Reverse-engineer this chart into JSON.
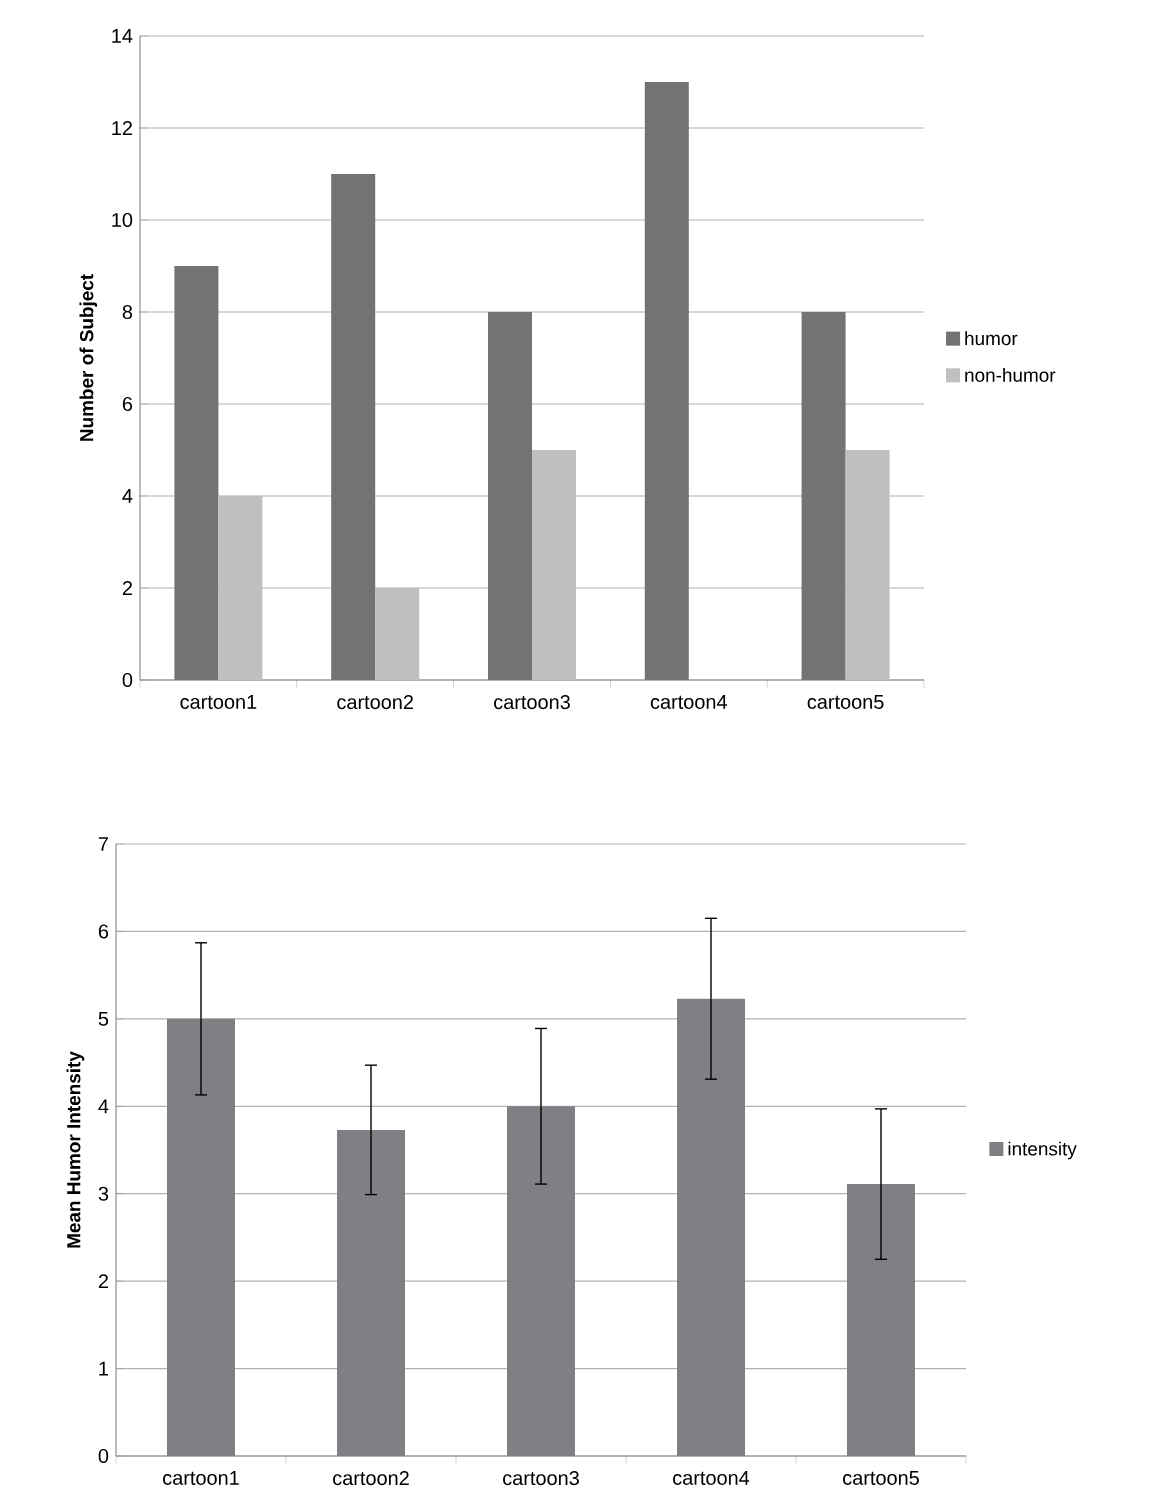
{
  "chart_data": [
    {
      "type": "bar",
      "ylabel": "Number of Subject",
      "categories": [
        "cartoon1",
        "cartoon2",
        "cartoon3",
        "cartoon4",
        "cartoon5"
      ],
      "series": [
        {
          "name": "humor",
          "color": "#737373",
          "values": [
            9,
            11,
            8,
            13,
            8
          ]
        },
        {
          "name": "non-humor",
          "color": "#bfbfbf",
          "values": [
            4,
            2,
            5,
            0,
            5
          ]
        }
      ],
      "ylim": [
        0,
        14
      ],
      "yticks": [
        0,
        2,
        4,
        6,
        8,
        10,
        12,
        14
      ],
      "grid": "y",
      "legend": "right"
    },
    {
      "type": "bar",
      "ylabel": "Mean Humor Intensity",
      "categories": [
        "cartoon1",
        "cartoon2",
        "cartoon3",
        "cartoon4",
        "cartoon5"
      ],
      "series": [
        {
          "name": "intensity",
          "color": "#7f8084",
          "values": [
            5,
            3.73,
            4,
            5.23,
            3.11
          ],
          "errors": [
            0.87,
            0.74,
            0.89,
            0.92,
            0.86
          ]
        }
      ],
      "ylim": [
        0,
        7
      ],
      "yticks": [
        0,
        1,
        2,
        3,
        4,
        5,
        6,
        7
      ],
      "grid": "y",
      "legend": "right"
    }
  ]
}
